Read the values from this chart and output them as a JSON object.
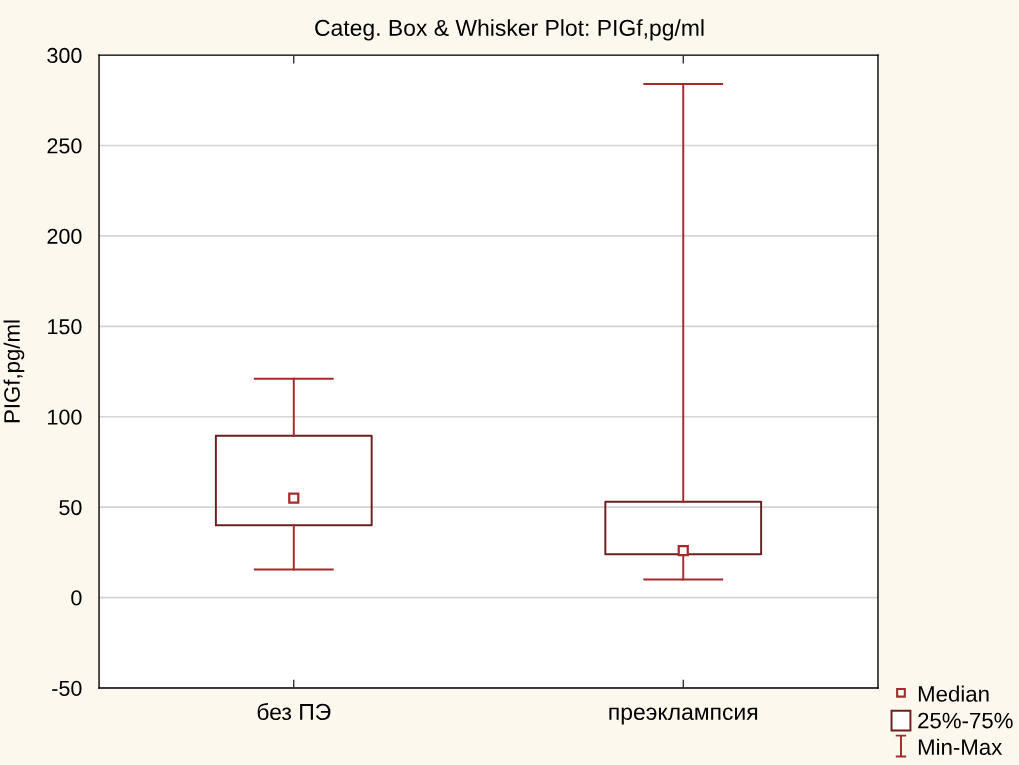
{
  "chart_data": {
    "type": "box",
    "title": "Categ. Box & Whisker Plot: PIGf,pg/ml",
    "ylabel": "PIGf,pg/ml",
    "categories": [
      "без ПЭ",
      "преэклампсия"
    ],
    "boxes": [
      {
        "low": 15.5,
        "q1": 40,
        "median": 55,
        "q3": 89.5,
        "high": 121
      },
      {
        "low": 10,
        "q1": 24,
        "median": 26,
        "q3": 53,
        "high": 284
      }
    ],
    "series": [
      {
        "name": "Median",
        "color": "#a52a2a",
        "values": [
          null,
          null
        ]
      },
      {
        "name": "25%-75%",
        "color": "#6b2020",
        "values": [
          null,
          null
        ]
      },
      {
        "name": "Min-Max",
        "color": "#a52a2a",
        "values": [
          null,
          null
        ]
      }
    ],
    "ylim": [
      -50,
      300
    ],
    "yticks": [
      -50,
      0,
      50,
      100,
      150,
      200,
      250,
      300
    ],
    "grid": "y",
    "legend": "bottom right",
    "marker": "square"
  }
}
